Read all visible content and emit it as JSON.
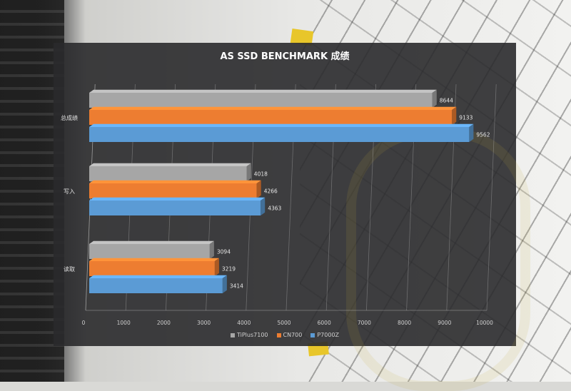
{
  "chart_data": {
    "type": "bar",
    "orientation": "horizontal",
    "style": "3d",
    "title": "AS SSD BENCHMARK 成绩",
    "categories": [
      "总成绩",
      "写入",
      "读取"
    ],
    "series": [
      {
        "name": "TiPlus7100",
        "values": [
          8644,
          4018,
          3094
        ],
        "color": "#a6a6a6"
      },
      {
        "name": "CN700",
        "values": [
          9133,
          4266,
          3219
        ],
        "color": "#ed7d31"
      },
      {
        "name": "P7000Z",
        "values": [
          9562,
          4363,
          3414
        ],
        "color": "#5b9bd5"
      }
    ],
    "xlim": [
      0,
      10000
    ],
    "x_ticks": [
      "0",
      "1000",
      "2000",
      "3000",
      "4000",
      "5000",
      "6000",
      "7000",
      "8000",
      "9000",
      "10000"
    ],
    "grid": true,
    "legend_position": "bottom"
  }
}
